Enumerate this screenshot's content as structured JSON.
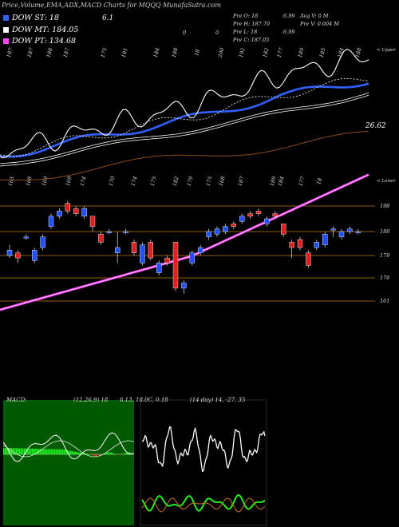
{
  "title": "Price,Volume,EMA,ADX,MACD Charts for MQQQ MunafaSutra.com",
  "legend": [
    {
      "label": "DOW ST: 18",
      "color": "#3060ff",
      "extra": "6.1"
    },
    {
      "label": "DOW MT: 184.05",
      "color": "#ffffff",
      "extra": ""
    },
    {
      "label": "DOW PT: 134.68",
      "color": "#ff44ff",
      "extra": ""
    }
  ],
  "info_left": [
    "Pre  O: 18",
    "Pre  H: 187.70",
    "Pre  L: 18",
    "Pre  C: 187.05"
  ],
  "info_mid": [
    "6.99",
    "",
    "6.99",
    ""
  ],
  "info_right": [
    "Avg V: 0  M",
    "Pre  V: 0.004  M",
    "",
    ""
  ],
  "top_volume_labels": [
    "187",
    "187",
    "188",
    "187",
    "175",
    "181",
    "184",
    "188",
    "18",
    "200",
    "192",
    "182",
    "177",
    "189",
    "185",
    "184",
    "188"
  ],
  "top_volume_zeros": [
    "0",
    "0"
  ],
  "upper_right_label": "< Upper",
  "lower_right_label": "< Lower",
  "lower_band_labels": [
    "165",
    "168",
    "169",
    "169",
    "174",
    "170",
    "174",
    "175",
    "182",
    "179",
    "175",
    "168",
    "187",
    "189",
    "184",
    "177",
    "18"
  ],
  "ema_value_label": "26.62",
  "price_levels": [
    "198",
    "188",
    "179",
    "170",
    "161"
  ],
  "macd": {
    "label": "MACD:",
    "params": "(12,26,9) 18",
    "values": "6.13,  18.0C,  0.18"
  },
  "adx": {
    "label": "(14  day) 14,  -27,  35"
  },
  "colors": {
    "up": "#2050ff",
    "down": "#e02020",
    "grid": "#c07818",
    "ema_long": "#8a4a18",
    "macd_hist": "#22ee22",
    "pink": "#ff44ff"
  },
  "chart_data": {
    "type": "candlestick",
    "levels": [
      198,
      188,
      179,
      170,
      161
    ],
    "candles": [
      {
        "o": 179,
        "c": 181,
        "h": 183,
        "l": 178
      },
      {
        "o": 180,
        "c": 178,
        "h": 181,
        "l": 176
      },
      {
        "o": 186,
        "c": 186,
        "h": 187,
        "l": 185
      },
      {
        "o": 177,
        "c": 181,
        "h": 182,
        "l": 176
      },
      {
        "o": 182,
        "c": 186,
        "h": 187,
        "l": 181
      },
      {
        "o": 190,
        "c": 194,
        "h": 195,
        "l": 189
      },
      {
        "o": 194,
        "c": 196,
        "h": 197,
        "l": 193
      },
      {
        "o": 199,
        "c": 196,
        "h": 200,
        "l": 195
      },
      {
        "o": 197,
        "c": 195,
        "h": 198,
        "l": 194
      },
      {
        "o": 194,
        "c": 197,
        "h": 198,
        "l": 193
      },
      {
        "o": 194,
        "c": 190,
        "h": 194,
        "l": 188
      },
      {
        "o": 187,
        "c": 184,
        "h": 188,
        "l": 183
      },
      {
        "o": 188,
        "c": 188,
        "h": 189,
        "l": 187
      },
      {
        "o": 180,
        "c": 182,
        "h": 188,
        "l": 176
      },
      {
        "o": 188,
        "c": 188,
        "h": 189,
        "l": 187
      },
      {
        "o": 184,
        "c": 180,
        "h": 185,
        "l": 179
      },
      {
        "o": 176,
        "c": 183,
        "h": 184,
        "l": 175
      },
      {
        "o": 184,
        "c": 178,
        "h": 185,
        "l": 177
      },
      {
        "o": 172,
        "c": 176,
        "h": 177,
        "l": 171
      },
      {
        "o": 178,
        "c": 176,
        "h": 179,
        "l": 175
      },
      {
        "o": 184,
        "c": 166,
        "h": 184,
        "l": 165
      },
      {
        "o": 166,
        "c": 168,
        "h": 169,
        "l": 164
      },
      {
        "o": 176,
        "c": 180,
        "h": 181,
        "l": 175
      },
      {
        "o": 180,
        "c": 182,
        "h": 183,
        "l": 179
      },
      {
        "o": 186,
        "c": 188,
        "h": 189,
        "l": 185
      },
      {
        "o": 187,
        "c": 189,
        "h": 190,
        "l": 186
      },
      {
        "o": 188,
        "c": 190,
        "h": 191,
        "l": 187
      },
      {
        "o": 191,
        "c": 190,
        "h": 192,
        "l": 189
      },
      {
        "o": 192,
        "c": 194,
        "h": 195,
        "l": 191
      },
      {
        "o": 195,
        "c": 194,
        "h": 196,
        "l": 193
      },
      {
        "o": 196,
        "c": 195,
        "h": 197,
        "l": 194
      },
      {
        "o": 191,
        "c": 193,
        "h": 194,
        "l": 190
      },
      {
        "o": 195,
        "c": 194,
        "h": 196,
        "l": 193
      },
      {
        "o": 191,
        "c": 187,
        "h": 191,
        "l": 186
      },
      {
        "o": 184,
        "c": 182,
        "h": 185,
        "l": 178
      },
      {
        "o": 185,
        "c": 182,
        "h": 186,
        "l": 181
      },
      {
        "o": 180,
        "c": 175,
        "h": 181,
        "l": 174
      },
      {
        "o": 182,
        "c": 184,
        "h": 185,
        "l": 181
      },
      {
        "o": 183,
        "c": 187,
        "h": 188,
        "l": 182
      },
      {
        "o": 189,
        "c": 189,
        "h": 190,
        "l": 186
      },
      {
        "o": 186,
        "c": 188,
        "h": 189,
        "l": 185
      },
      {
        "o": 188,
        "c": 189,
        "h": 190,
        "l": 187
      },
      {
        "o": 188,
        "c": 188,
        "h": 189,
        "l": 187
      }
    ]
  }
}
